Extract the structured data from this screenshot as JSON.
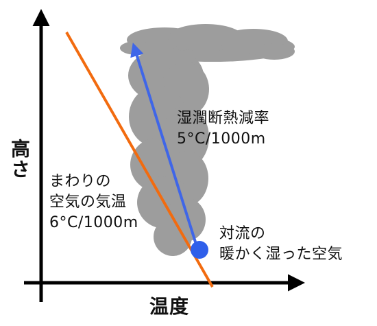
{
  "axes": {
    "y_label": "高さ",
    "x_label": "温度"
  },
  "annotations": {
    "moist_rate": {
      "title": "湿潤断熱減率",
      "value": "5°C/1000m"
    },
    "ambient": {
      "line1": "まわりの",
      "line2": "空気の気温",
      "value": "6°C/1000m"
    },
    "parcel": {
      "line1": "対流の",
      "line2": "暖かく湿った空気"
    }
  },
  "colors": {
    "ambient_line": "#F26B0F",
    "moist_arrow": "#3F66E8",
    "parcel_dot": "#2F5FEA",
    "cloud": "#9D9D9D",
    "axis": "#000000"
  }
}
